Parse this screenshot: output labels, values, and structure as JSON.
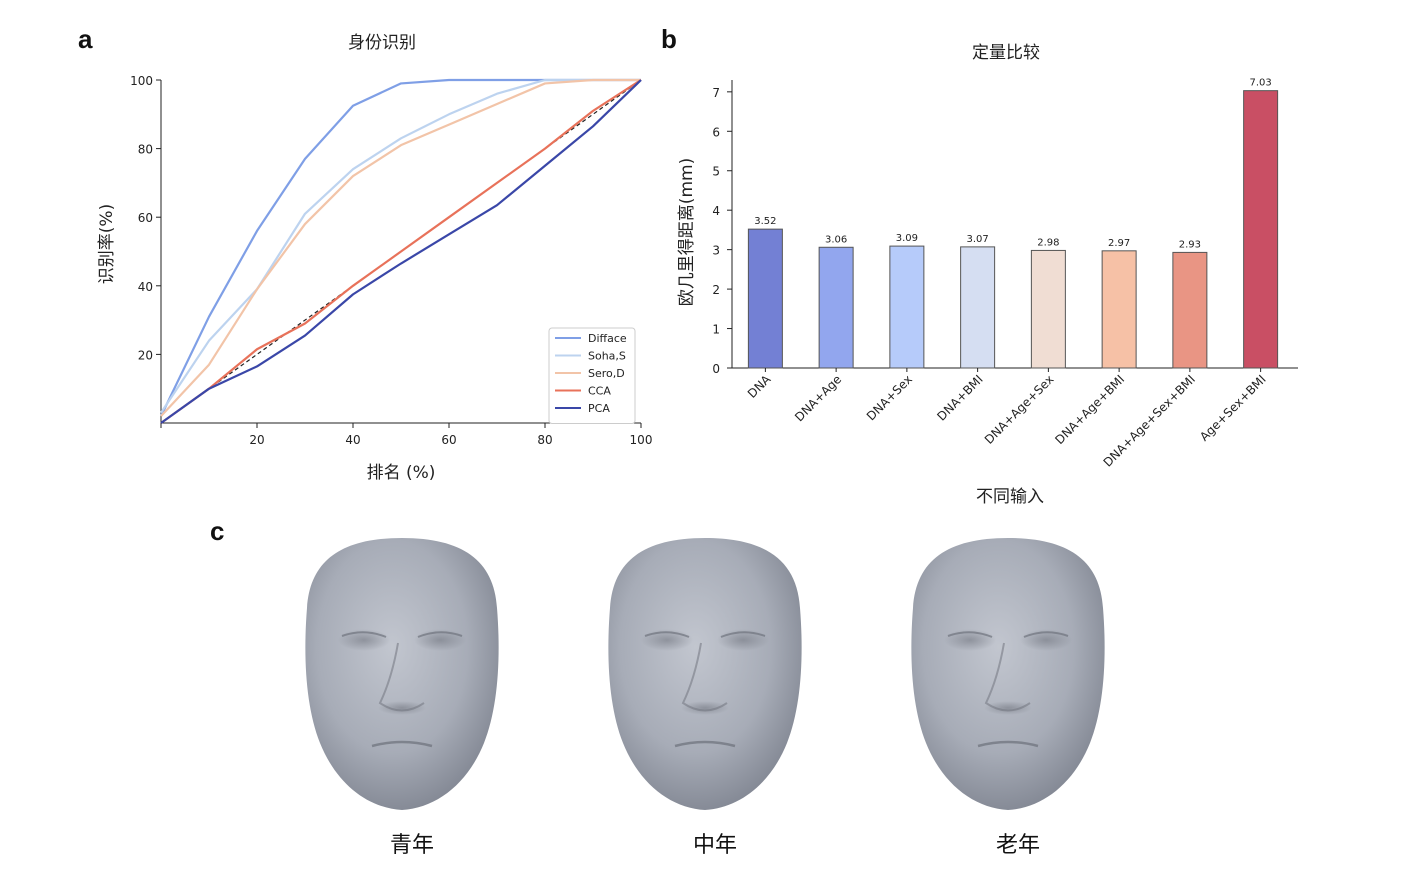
{
  "panels": {
    "a": {
      "label": "a"
    },
    "b": {
      "label": "b"
    },
    "c": {
      "label": "c"
    }
  },
  "chart_data": [
    {
      "type": "line",
      "title": "身份识别",
      "xlabel": "排名 (%)",
      "ylabel": "识别率(%)",
      "xlim": [
        0,
        100
      ],
      "ylim": [
        0,
        100
      ],
      "x_ticks": [
        "20",
        "40",
        "60",
        "80",
        "100"
      ],
      "y_ticks": [
        "20",
        "40",
        "60",
        "80",
        "100"
      ],
      "legend_position": "lower-right",
      "x": [
        0,
        10,
        20,
        30,
        40,
        50,
        60,
        70,
        80,
        90,
        100
      ],
      "series": [
        {
          "name": "Difface",
          "color": "#7f9fe6",
          "values": [
            2,
            31,
            56,
            77,
            92.5,
            99,
            100,
            100,
            100,
            100,
            100
          ]
        },
        {
          "name": "Soha,S",
          "color": "#bdd3ef",
          "values": [
            3,
            24,
            39,
            61,
            74,
            83,
            90,
            96,
            100,
            100,
            100
          ]
        },
        {
          "name": "Sero,D",
          "color": "#f2c4a8",
          "values": [
            2,
            17,
            39,
            58,
            72,
            81,
            87,
            93,
            99,
            100,
            100
          ]
        },
        {
          "name": "CCA",
          "color": "#e8725a",
          "values": [
            0,
            10,
            21.5,
            29,
            40,
            50,
            60,
            70,
            80,
            91,
            100
          ]
        },
        {
          "name": "PCA",
          "color": "#3a47a8",
          "values": [
            0,
            10,
            16.5,
            25.5,
            37.5,
            46.5,
            55,
            63.5,
            75,
            86.5,
            100
          ]
        }
      ],
      "reference_line": {
        "style": "dashed",
        "color": "#222222",
        "values": [
          0,
          100
        ]
      }
    },
    {
      "type": "bar",
      "title": "定量比较",
      "xlabel": "不同输入",
      "ylabel": "欧几里得距离(mm)",
      "ylim": [
        0,
        7.3
      ],
      "y_ticks": [
        "0",
        "1",
        "2",
        "3",
        "4",
        "5",
        "6",
        "7"
      ],
      "categories": [
        "DNA",
        "DNA+Age",
        "DNA+Sex",
        "DNA+BMI",
        "DNA+Age+Sex",
        "DNA+Age+BMI",
        "DNA+Age+Sex+BMI",
        "Age+Sex+BMI"
      ],
      "values": [
        3.52,
        3.06,
        3.09,
        3.07,
        2.98,
        2.97,
        2.93,
        7.03
      ],
      "value_labels": [
        "3.52",
        "3.06",
        "3.09",
        "3.07",
        "2.98",
        "2.97",
        "2.93",
        "7.03"
      ],
      "colors": [
        "#7380d4",
        "#92a6ee",
        "#b6cbfa",
        "#d5def2",
        "#f0ddd3",
        "#f6c1a6",
        "#e99584",
        "#c94f64"
      ]
    }
  ],
  "faces": [
    {
      "caption": "青年"
    },
    {
      "caption": "中年"
    },
    {
      "caption": "老年"
    }
  ]
}
